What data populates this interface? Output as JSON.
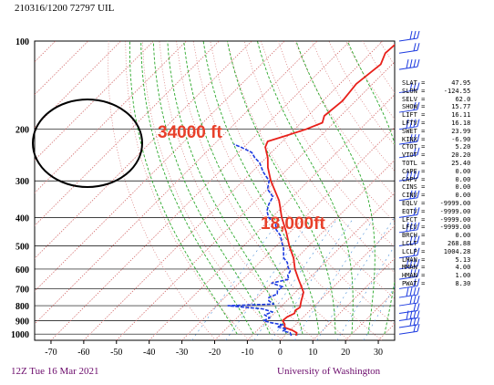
{
  "header": {
    "title": "210316/1200 72797  UIL"
  },
  "footer": {
    "left": "12Z Tue 16 Mar 2021",
    "right": "University of Washington"
  },
  "colors": {
    "temperature": "#e8201a",
    "dewpoint": "#1c3ae0",
    "isotherm": "#d06060",
    "moist_adiabat": "#2aa82a",
    "mixing_ratio": "#4a8fd8",
    "wind": "#1c3ae0",
    "annotation": "#e8402a",
    "footer": "#6b0a6b"
  },
  "annotations": [
    {
      "text": "34000 ft"
    },
    {
      "text": "18,000ft"
    }
  ],
  "indices": [
    {
      "label": "SLAT",
      "value": "47.95"
    },
    {
      "label": "SLON",
      "value": "-124.55"
    },
    {
      "label": "SELV",
      "value": "62.0"
    },
    {
      "label": "SHOW",
      "value": "15.77"
    },
    {
      "label": "LIFT",
      "value": "16.11"
    },
    {
      "label": "LFTV",
      "value": "16.18"
    },
    {
      "label": "SWET",
      "value": "23.99"
    },
    {
      "label": "KINX",
      "value": "-6.90"
    },
    {
      "label": "CTOT",
      "value": "5.20"
    },
    {
      "label": "VTOT",
      "value": "20.20"
    },
    {
      "label": "TOTL",
      "value": "25.40"
    },
    {
      "label": "CAPE",
      "value": "0.00"
    },
    {
      "label": "CAPV",
      "value": "0.00"
    },
    {
      "label": "CINS",
      "value": "0.00"
    },
    {
      "label": "CINV",
      "value": "0.00"
    },
    {
      "label": "EQLV",
      "value": "-9999.00"
    },
    {
      "label": "EQTV",
      "value": "-9999.00"
    },
    {
      "label": "LFCT",
      "value": "-9999.00"
    },
    {
      "label": "LFCV",
      "value": "-9999.00"
    },
    {
      "label": "BRCH",
      "value": "0.00"
    },
    {
      "label": "LCLT",
      "value": "268.88"
    },
    {
      "label": "LCLP",
      "value": "1004.28"
    },
    {
      "label": "LMAN",
      "value": "5.13"
    },
    {
      "label": "MMAN",
      "value": "4.00"
    },
    {
      "label": "HMAN",
      "value": "1.00"
    },
    {
      "label": "PWAT",
      "value": "8.30"
    }
  ],
  "chart_data": {
    "type": "line",
    "xlim": [
      -75,
      35
    ],
    "ylim": [
      1050,
      100
    ],
    "y_scale": "log",
    "x_ticks": [
      "-70",
      "-60",
      "-50",
      "-40",
      "-30",
      "-20",
      "-10",
      "0",
      "10",
      "20",
      "30"
    ],
    "y_ticks": [
      "100",
      "200",
      "300",
      "400",
      "500",
      "600",
      "700",
      "800",
      "900",
      "1000"
    ],
    "series": [
      {
        "key": "temperature",
        "points": [
          [
            1012,
            3.4
          ],
          [
            990,
            2.8
          ],
          [
            970,
            0.6
          ],
          [
            950,
            -2.5
          ],
          [
            925,
            -3.5
          ],
          [
            900,
            -5.2
          ],
          [
            875,
            -5.0
          ],
          [
            850,
            -3.8
          ],
          [
            830,
            -4.5
          ],
          [
            810,
            -4.0
          ],
          [
            790,
            -4.8
          ],
          [
            770,
            -5.6
          ],
          [
            745,
            -6.5
          ],
          [
            720,
            -7.5
          ],
          [
            700,
            -9.0
          ],
          [
            650,
            -13.0
          ],
          [
            600,
            -17.2
          ],
          [
            550,
            -21.0
          ],
          [
            500,
            -26.0
          ],
          [
            450,
            -31.0
          ],
          [
            400,
            -37.0
          ],
          [
            350,
            -43.0
          ],
          [
            300,
            -51.5
          ],
          [
            270,
            -56.5
          ],
          [
            250,
            -59.5
          ],
          [
            240,
            -61.5
          ],
          [
            230,
            -63.5
          ],
          [
            220,
            -64.5
          ],
          [
            210,
            -60.5
          ],
          [
            200,
            -56.5
          ],
          [
            190,
            -53.5
          ],
          [
            180,
            -55.0
          ],
          [
            160,
            -54.0
          ],
          [
            140,
            -55.0
          ],
          [
            120,
            -53.5
          ],
          [
            110,
            -55.5
          ],
          [
            100,
            -55.0
          ]
        ]
      },
      {
        "key": "dewpoint",
        "points": [
          [
            1012,
            2.0
          ],
          [
            990,
            0.8
          ],
          [
            975,
            -2.0
          ],
          [
            960,
            -1.5
          ],
          [
            945,
            -5.0
          ],
          [
            930,
            -3.8
          ],
          [
            915,
            -8.0
          ],
          [
            900,
            -11.0
          ],
          [
            880,
            -10.0
          ],
          [
            860,
            -12.5
          ],
          [
            840,
            -11.0
          ],
          [
            820,
            -15.0
          ],
          [
            800,
            -26.5
          ],
          [
            790,
            -13.0
          ],
          [
            770,
            -15.5
          ],
          [
            750,
            -16.5
          ],
          [
            730,
            -15.0
          ],
          [
            710,
            -16.0
          ],
          [
            690,
            -15.5
          ],
          [
            670,
            -20.0
          ],
          [
            650,
            -16.0
          ],
          [
            630,
            -17.5
          ],
          [
            610,
            -18.0
          ],
          [
            590,
            -20.0
          ],
          [
            570,
            -21.5
          ],
          [
            550,
            -24.0
          ],
          [
            530,
            -25.5
          ],
          [
            510,
            -27.0
          ],
          [
            490,
            -29.0
          ],
          [
            460,
            -32.0
          ],
          [
            440,
            -35.0
          ],
          [
            420,
            -37.0
          ],
          [
            400,
            -41.0
          ],
          [
            380,
            -43.5
          ],
          [
            360,
            -45.0
          ],
          [
            340,
            -46.0
          ],
          [
            320,
            -50.0
          ],
          [
            300,
            -52.0
          ],
          [
            280,
            -56.5
          ],
          [
            260,
            -60.5
          ],
          [
            250,
            -63.5
          ],
          [
            240,
            -66.0
          ],
          [
            230,
            -71.0
          ],
          [
            225,
            -74.0
          ]
        ]
      }
    ],
    "wind_barbs_at": [
      1000,
      950,
      900,
      850,
      800,
      750,
      700,
      650,
      600,
      550,
      500,
      450,
      400,
      350,
      300,
      250,
      225,
      200,
      175,
      150,
      125,
      110,
      100
    ]
  }
}
